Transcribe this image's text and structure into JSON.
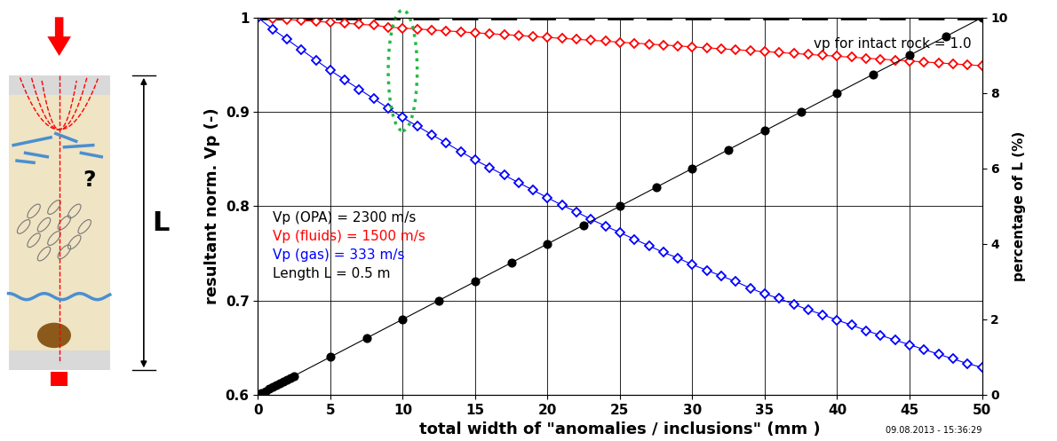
{
  "chart_data": {
    "type": "line",
    "xlabel": "total width of \"anomalies / inclusions\" (mm )",
    "ylabel": "resultant norm. Vp (-)",
    "y2label": "percentage of L (%)",
    "xlim": [
      0,
      50
    ],
    "xticks": [
      0,
      5,
      10,
      15,
      20,
      25,
      30,
      35,
      40,
      45,
      50
    ],
    "ylim": [
      0.6,
      1
    ],
    "yticks": [
      0.6,
      0.7,
      0.8,
      0.9,
      1
    ],
    "y2lim": [
      0,
      10
    ],
    "y2ticks": [
      0,
      2,
      4,
      6,
      8,
      10
    ],
    "grid": true,
    "note": "vp for intact rock = 1.0",
    "annotations": [
      {
        "text": "Vp (OPA) = 2300 m/s",
        "color": "#000000"
      },
      {
        "text": "Vp (fluids) = 1500 m/s",
        "color": "#ff0000"
      },
      {
        "text": "Vp (gas) = 333 m/s",
        "color": "#0000ff"
      },
      {
        "text": "Length L = 0.5 m",
        "color": "#000000"
      }
    ],
    "footer": "09.08.2013 - 15:36:29",
    "series": [
      {
        "type": "line",
        "color": "#000000",
        "line_style": "dashed",
        "marker": "none",
        "x": [
          0,
          50
        ],
        "values": [
          1,
          1
        ]
      },
      {
        "type": "line",
        "color": "#ff0000",
        "line_style": "solid",
        "marker": "diamond",
        "x": [
          0,
          1,
          2,
          3,
          4,
          5,
          6,
          7,
          8,
          9,
          10,
          11,
          12,
          13,
          14,
          15,
          16,
          17,
          18,
          19,
          20,
          21,
          22,
          23,
          24,
          25,
          26,
          27,
          28,
          29,
          30,
          31,
          32,
          33,
          34,
          35,
          36,
          37,
          38,
          39,
          40,
          41,
          42,
          43,
          44,
          45,
          46,
          47,
          48,
          49,
          50
        ],
        "values": [
          1.0,
          0.999,
          0.998,
          0.997,
          0.996,
          0.995,
          0.994,
          0.993,
          0.992,
          0.99,
          0.989,
          0.988,
          0.987,
          0.986,
          0.985,
          0.984,
          0.983,
          0.982,
          0.981,
          0.98,
          0.979,
          0.978,
          0.977,
          0.976,
          0.975,
          0.974,
          0.973,
          0.972,
          0.971,
          0.97,
          0.969,
          0.968,
          0.967,
          0.966,
          0.965,
          0.964,
          0.963,
          0.962,
          0.961,
          0.96,
          0.959,
          0.958,
          0.957,
          0.956,
          0.955,
          0.954,
          0.953,
          0.952,
          0.951,
          0.95,
          0.949
        ]
      },
      {
        "type": "line",
        "color": "#0000ff",
        "line_style": "solid",
        "marker": "diamond",
        "x": [
          0,
          1,
          2,
          3,
          4,
          5,
          6,
          7,
          8,
          9,
          10,
          11,
          12,
          13,
          14,
          15,
          16,
          17,
          18,
          19,
          20,
          21,
          22,
          23,
          24,
          25,
          26,
          27,
          28,
          29,
          30,
          31,
          32,
          33,
          34,
          35,
          36,
          37,
          38,
          39,
          40,
          41,
          42,
          43,
          44,
          45,
          46,
          47,
          48,
          49,
          50
        ],
        "values": [
          1.0,
          0.988,
          0.977,
          0.966,
          0.955,
          0.944,
          0.934,
          0.924,
          0.914,
          0.904,
          0.894,
          0.885,
          0.876,
          0.867,
          0.858,
          0.849,
          0.841,
          0.833,
          0.825,
          0.817,
          0.809,
          0.801,
          0.794,
          0.786,
          0.779,
          0.772,
          0.765,
          0.758,
          0.751,
          0.745,
          0.738,
          0.732,
          0.726,
          0.72,
          0.713,
          0.707,
          0.702,
          0.696,
          0.69,
          0.685,
          0.679,
          0.674,
          0.668,
          0.663,
          0.658,
          0.653,
          0.648,
          0.643,
          0.638,
          0.633,
          0.629
        ]
      },
      {
        "type": "line",
        "color": "#000000",
        "line_style": "solid",
        "marker": "circle",
        "axis": "y2",
        "x": [
          0,
          0.25,
          0.5,
          0.75,
          1,
          1.25,
          1.5,
          1.75,
          2,
          2.25,
          2.5,
          5,
          7.5,
          10,
          12.5,
          15,
          17.5,
          20,
          22.5,
          25,
          27.5,
          30,
          32.5,
          35,
          37.5,
          40,
          42.5,
          45,
          47.5,
          50
        ],
        "values": [
          0,
          0.05,
          0.1,
          0.15,
          0.2,
          0.25,
          0.3,
          0.35,
          0.4,
          0.45,
          0.5,
          1,
          1.5,
          2,
          2.5,
          3,
          3.5,
          4,
          4.5,
          5,
          5.5,
          6,
          6.5,
          7,
          7.5,
          8,
          8.5,
          9,
          9.5,
          10
        ]
      }
    ]
  },
  "diagram": {
    "question_mark": "?",
    "length_label": "L"
  }
}
